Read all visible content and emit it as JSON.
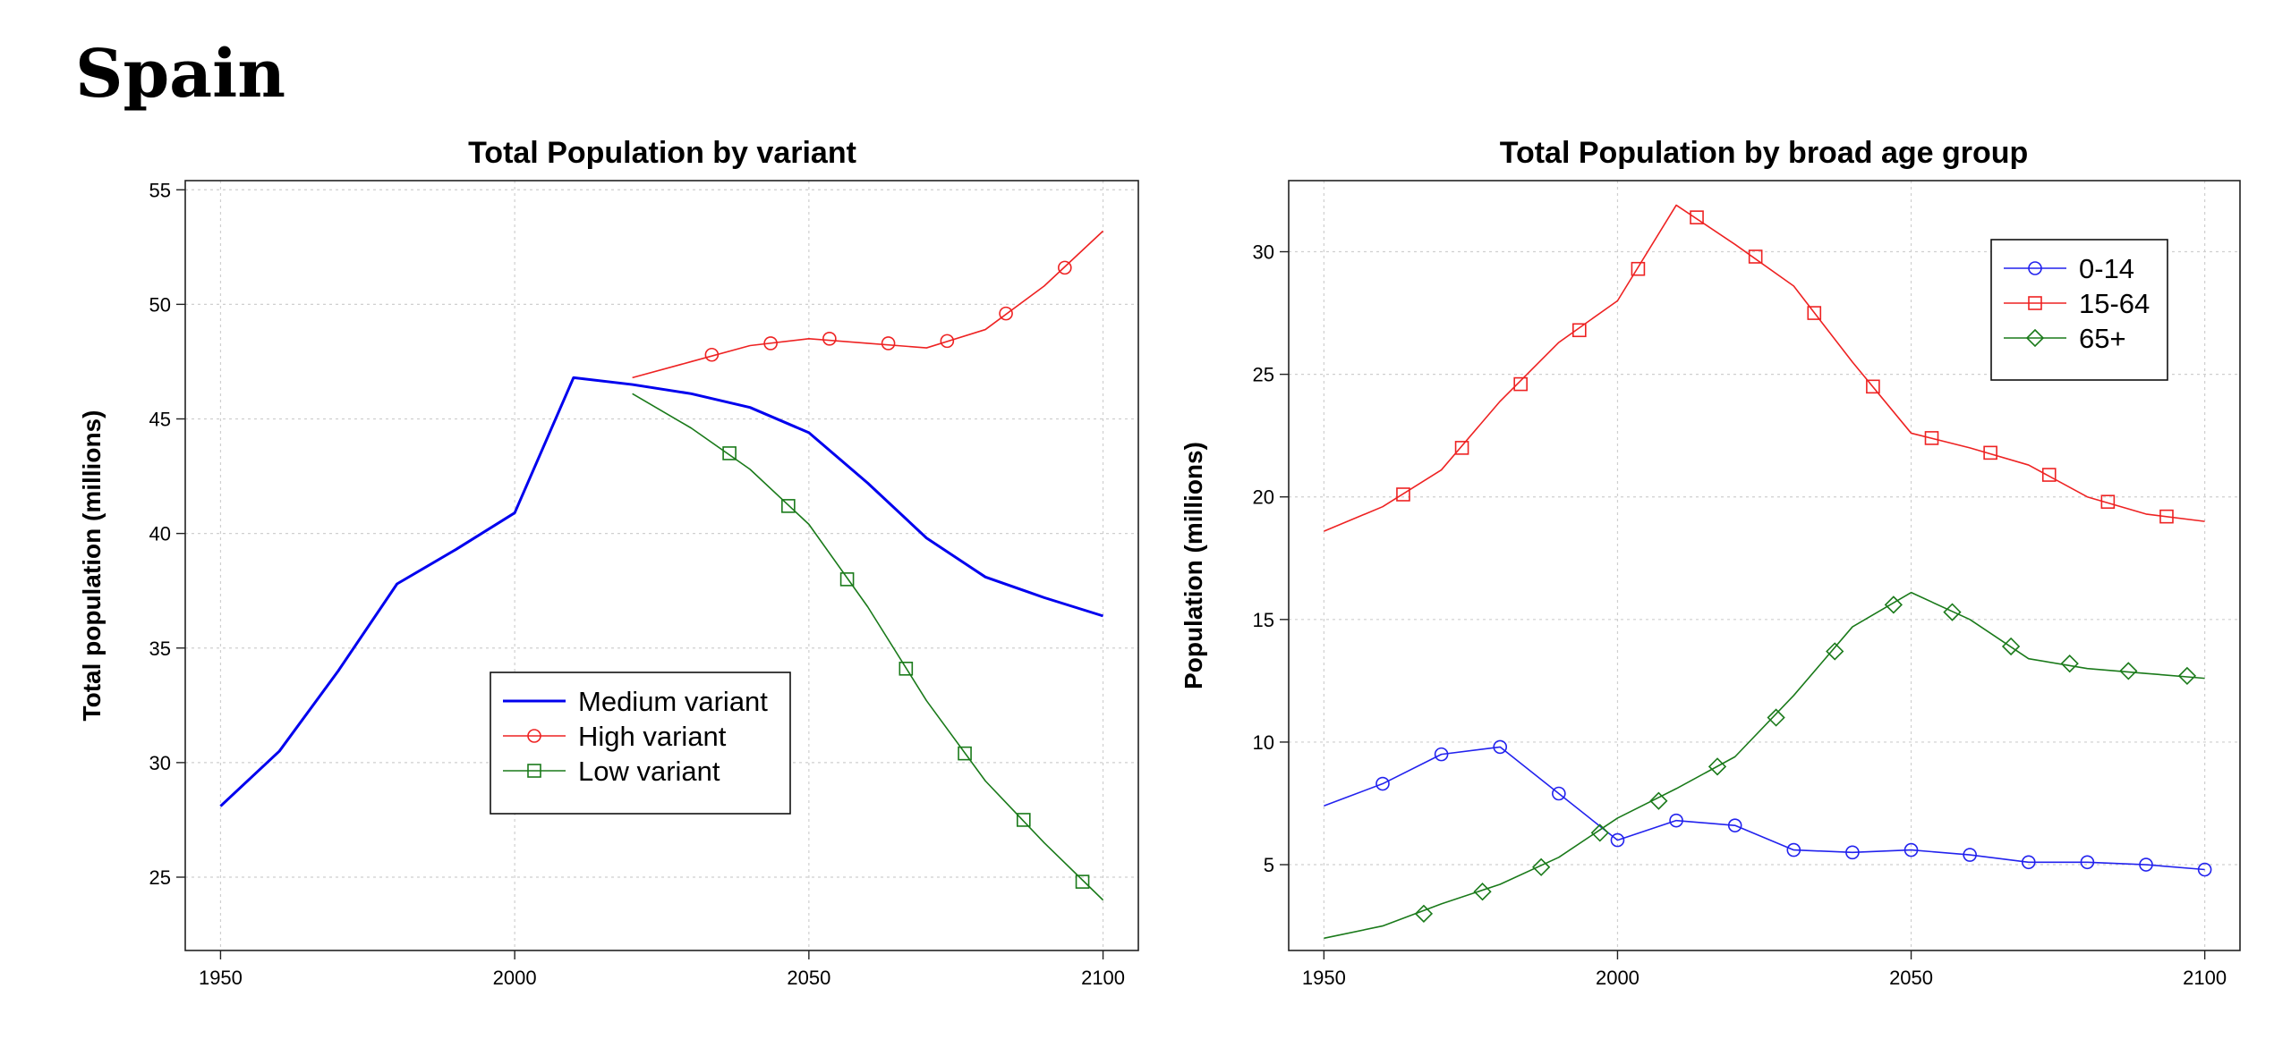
{
  "page": {
    "title": "Spain"
  },
  "chart_data": [
    {
      "type": "line",
      "title": "Total Population by variant",
      "xlabel": "",
      "ylabel": "Total population (millions)",
      "xlim": [
        1944,
        2106
      ],
      "ylim": [
        21.8,
        55.4
      ],
      "xticks": [
        1950,
        2000,
        2050,
        2100
      ],
      "yticks": [
        25,
        30,
        35,
        40,
        45,
        50,
        55
      ],
      "grid": true,
      "legend_position": "bottom-center",
      "series": [
        {
          "name": "Medium variant",
          "color": "#0000ee",
          "marker": "none",
          "width": 3,
          "x": [
            1950,
            1960,
            1970,
            1980,
            1990,
            2000,
            2010,
            2020,
            2030,
            2040,
            2050,
            2060,
            2070,
            2080,
            2090,
            2100
          ],
          "y": [
            28.1,
            30.5,
            34.0,
            37.8,
            39.3,
            40.9,
            46.8,
            46.5,
            46.1,
            45.5,
            44.4,
            42.2,
            39.8,
            38.1,
            37.2,
            36.4
          ]
        },
        {
          "name": "High variant",
          "color": "#ee2222",
          "marker": "circle",
          "width": 1.6,
          "x": [
            2020,
            2030,
            2040,
            2050,
            2060,
            2070,
            2080,
            2090,
            2100
          ],
          "y": [
            46.8,
            47.5,
            48.2,
            48.5,
            48.3,
            48.1,
            48.9,
            50.8,
            53.2
          ],
          "marker_x": [
            2033.5,
            2043.5,
            2053.5,
            2063.5,
            2073.5,
            2083.5,
            2093.5
          ],
          "marker_y": [
            47.8,
            48.3,
            48.5,
            48.3,
            48.4,
            49.6,
            51.6
          ]
        },
        {
          "name": "Low variant",
          "color": "#1a7a1a",
          "marker": "square",
          "width": 1.6,
          "x": [
            2020,
            2030,
            2040,
            2050,
            2060,
            2070,
            2080,
            2090,
            2100
          ],
          "y": [
            46.1,
            44.6,
            42.8,
            40.4,
            36.8,
            32.7,
            29.2,
            26.5,
            24.0
          ],
          "marker_x": [
            2036.5,
            2046.5,
            2056.5,
            2066.5,
            2076.5,
            2086.5,
            2096.5
          ],
          "marker_y": [
            43.5,
            41.2,
            38.0,
            34.1,
            30.4,
            27.5,
            24.8
          ]
        }
      ]
    },
    {
      "type": "line",
      "title": "Total Population by broad age group",
      "xlabel": "",
      "ylabel": "Population (millions)",
      "xlim": [
        1944,
        2106
      ],
      "ylim": [
        1.5,
        32.9
      ],
      "xticks": [
        1950,
        2000,
        2050,
        2100
      ],
      "yticks": [
        5,
        10,
        15,
        20,
        25,
        30
      ],
      "grid": true,
      "legend_position": "top-right",
      "series": [
        {
          "name": "0-14",
          "color": "#2222ee",
          "marker": "circle",
          "width": 1.6,
          "x": [
            1950,
            1960,
            1970,
            1980,
            1990,
            2000,
            2010,
            2020,
            2030,
            2040,
            2050,
            2060,
            2070,
            2080,
            2090,
            2100
          ],
          "y": [
            7.4,
            8.3,
            9.5,
            9.8,
            7.9,
            6.0,
            6.8,
            6.6,
            5.6,
            5.5,
            5.6,
            5.4,
            5.1,
            5.1,
            5.0,
            4.8
          ],
          "marker_x": [
            1960,
            1970,
            1980,
            1990,
            2000,
            2010,
            2020,
            2030,
            2040,
            2050,
            2060,
            2070,
            2080,
            2090,
            2100
          ],
          "marker_y": [
            8.3,
            9.5,
            9.8,
            7.9,
            6.0,
            6.8,
            6.6,
            5.6,
            5.5,
            5.6,
            5.4,
            5.1,
            5.1,
            5.0,
            4.8
          ]
        },
        {
          "name": "15-64",
          "color": "#ee2222",
          "marker": "square",
          "width": 1.6,
          "x": [
            1950,
            1960,
            1970,
            1980,
            1990,
            2000,
            2010,
            2020,
            2030,
            2040,
            2050,
            2060,
            2070,
            2080,
            2090,
            2100
          ],
          "y": [
            18.6,
            19.6,
            21.1,
            23.9,
            26.3,
            28.0,
            31.9,
            30.3,
            28.6,
            25.5,
            22.6,
            22.0,
            21.3,
            20.0,
            19.3,
            19.0
          ],
          "marker_x": [
            1963.5,
            1973.5,
            1983.5,
            1993.5,
            2003.5,
            2013.5,
            2023.5,
            2033.5,
            2043.5,
            2053.5,
            2063.5,
            2073.5,
            2083.5,
            2093.5
          ],
          "marker_y": [
            20.1,
            22.0,
            24.6,
            26.8,
            29.3,
            31.4,
            29.8,
            27.5,
            24.5,
            22.4,
            21.8,
            20.9,
            19.8,
            19.2
          ]
        },
        {
          "name": "65+",
          "color": "#1a7a1a",
          "marker": "diamond",
          "width": 1.6,
          "x": [
            1950,
            1960,
            1970,
            1980,
            1990,
            2000,
            2010,
            2020,
            2030,
            2040,
            2050,
            2060,
            2070,
            2080,
            2090,
            2100
          ],
          "y": [
            2.0,
            2.5,
            3.4,
            4.2,
            5.3,
            6.9,
            8.1,
            9.4,
            11.9,
            14.7,
            16.1,
            15.0,
            13.4,
            13.0,
            12.8,
            12.6
          ],
          "marker_x": [
            1967,
            1977,
            1987,
            1997,
            2007,
            2017,
            2027,
            2037,
            2047,
            2057,
            2067,
            2077,
            2087,
            2097
          ],
          "marker_y": [
            3.0,
            3.9,
            4.9,
            6.3,
            7.6,
            9.0,
            11.0,
            13.7,
            15.6,
            15.3,
            13.9,
            13.2,
            12.9,
            12.7
          ]
        }
      ]
    }
  ]
}
